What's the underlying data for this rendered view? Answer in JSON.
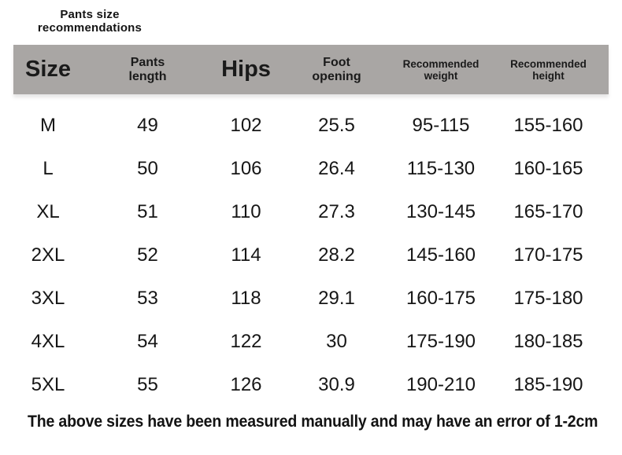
{
  "colors": {
    "page_bg": "#ffffff",
    "header_bg": "#a9a6a4",
    "text_primary": "#161616"
  },
  "title": {
    "line1": "Pants size",
    "line2": "recommendations"
  },
  "table": {
    "headers": [
      [
        "Size"
      ],
      [
        "Pants",
        "length"
      ],
      [
        "Hips"
      ],
      [
        "Foot",
        "opening"
      ],
      [
        "Recommended",
        "weight"
      ],
      [
        "Recommended",
        "height"
      ]
    ],
    "rows": [
      [
        "M",
        "49",
        "102",
        "25.5",
        "95-115",
        "155-160"
      ],
      [
        "L",
        "50",
        "106",
        "26.4",
        "115-130",
        "160-165"
      ],
      [
        "XL",
        "51",
        "110",
        "27.3",
        "130-145",
        "165-170"
      ],
      [
        "2XL",
        "52",
        "114",
        "28.2",
        "145-160",
        "170-175"
      ],
      [
        "3XL",
        "53",
        "118",
        "29.1",
        "160-175",
        "175-180"
      ],
      [
        "4XL",
        "54",
        "122",
        "30",
        "175-190",
        "180-185"
      ],
      [
        "5XL",
        "55",
        "126",
        "30.9",
        "190-210",
        "185-190"
      ]
    ]
  },
  "note": "The above sizes have been measured manually and may have an error of 1-2cm"
}
